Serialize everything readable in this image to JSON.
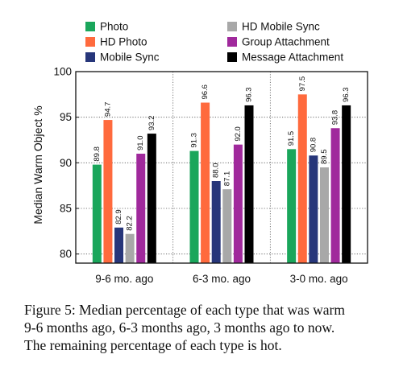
{
  "chart_data": {
    "type": "bar",
    "ylabel": "Median Warm Object %",
    "ylim": [
      79,
      100
    ],
    "yticks": [
      80,
      85,
      90,
      95,
      100
    ],
    "categories": [
      "9-6 mo. ago",
      "6-3 mo. ago",
      "3-0 mo. ago"
    ],
    "series": [
      {
        "name": "Photo",
        "color": "#1aa65b",
        "values": [
          89.8,
          91.3,
          91.5
        ]
      },
      {
        "name": "HD Photo",
        "color": "#ff6a3d",
        "values": [
          94.7,
          96.6,
          97.5
        ]
      },
      {
        "name": "Mobile Sync",
        "color": "#27367a",
        "values": [
          82.9,
          88.0,
          90.8
        ]
      },
      {
        "name": "HD Mobile Sync",
        "color": "#a8a8a8",
        "values": [
          82.2,
          87.1,
          89.5
        ]
      },
      {
        "name": "Group Attachment",
        "color": "#a0299c",
        "values": [
          91.0,
          92.0,
          93.8
        ]
      },
      {
        "name": "Message Attachment",
        "color": "#000000",
        "values": [
          93.2,
          96.3,
          96.3
        ]
      }
    ],
    "value_labels": [
      [
        "89.8",
        "94.7",
        "82.9",
        "82.2",
        "91.0",
        "93.2"
      ],
      [
        "91.3",
        "96.6",
        "88.0",
        "87.1",
        "92.0",
        "96.3"
      ],
      [
        "91.5",
        "97.5",
        "90.8",
        "89.5",
        "93.8",
        "96.3"
      ]
    ],
    "legend_position": "top",
    "grid": "dotted horizontal gridlines and category separators"
  },
  "caption": {
    "line1": "Figure 5: Median percentage of each type that was warm",
    "line2": "9-6 months ago, 6-3 months ago, 3 months ago to now.",
    "line3": "The remaining percentage of each type is hot."
  }
}
